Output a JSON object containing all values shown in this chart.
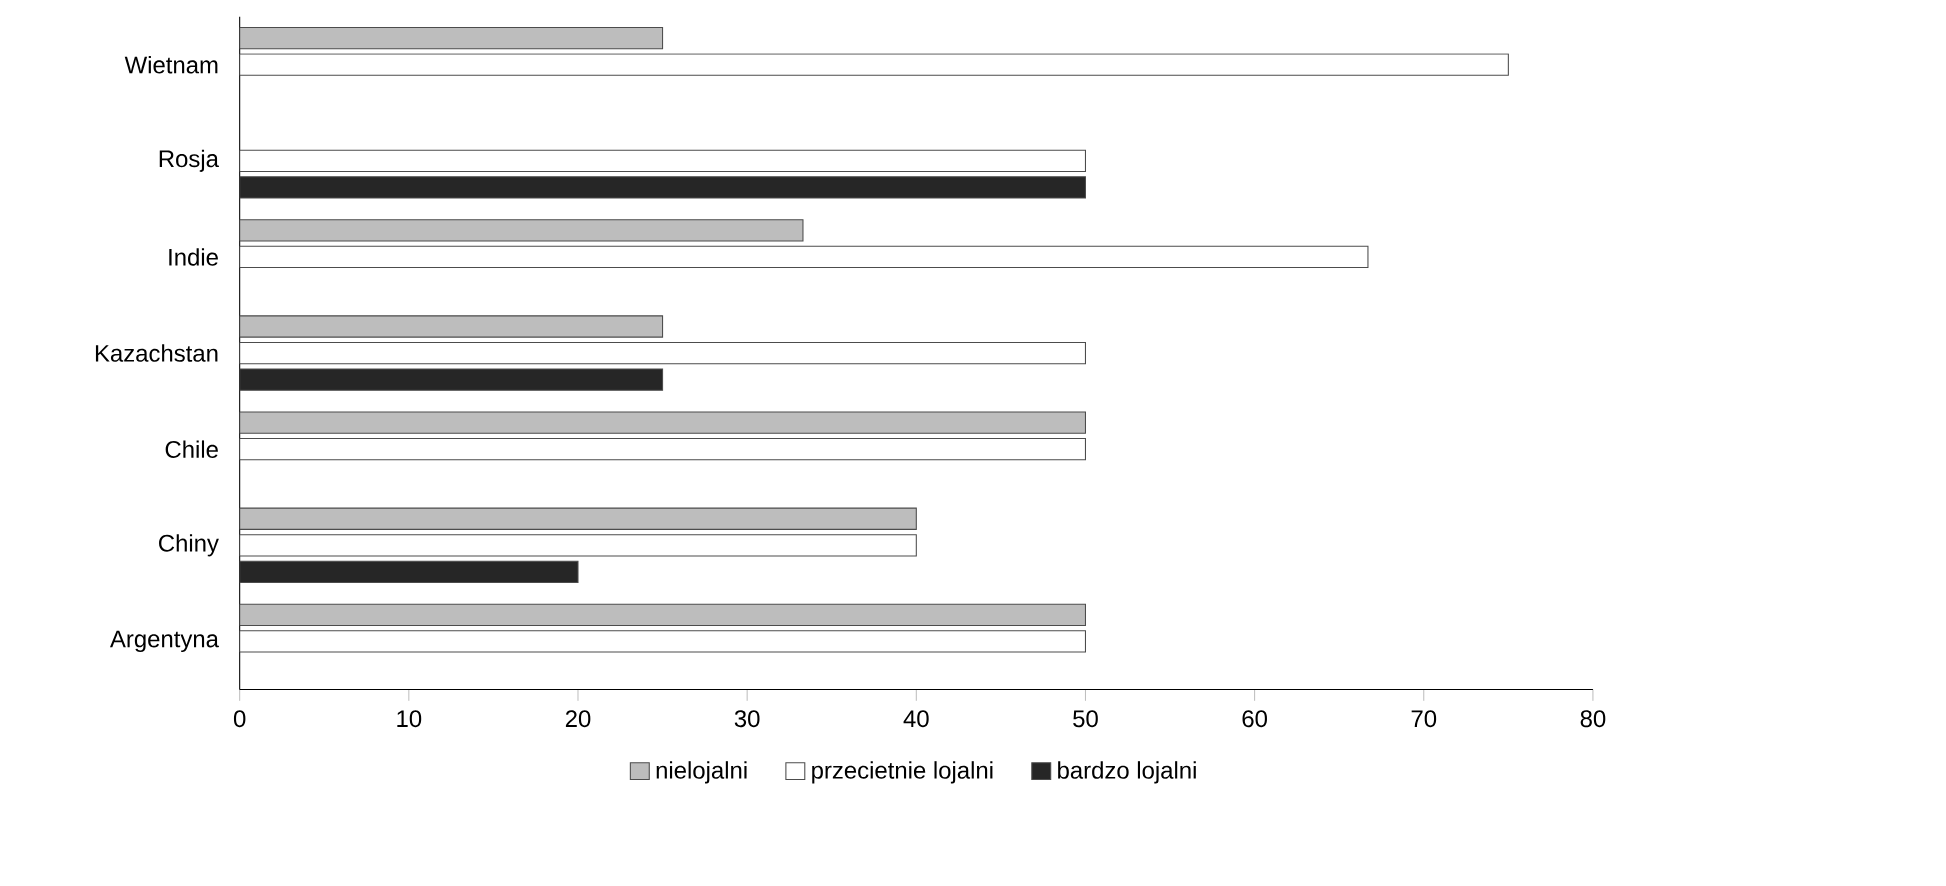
{
  "chart_data": {
    "type": "bar",
    "orientation": "horizontal",
    "categories": [
      "Wietnam",
      "Rosja",
      "Indie",
      "Kazachstan",
      "Chile",
      "Chiny",
      "Argentyna"
    ],
    "series": [
      {
        "name": "nielojalni",
        "color": "#bdbdbd",
        "values": [
          25,
          null,
          33.3,
          25,
          50,
          40,
          50
        ]
      },
      {
        "name": "przecietnie lojalni",
        "color": "#ffffff",
        "values": [
          75,
          50,
          66.7,
          50,
          50,
          40,
          50
        ]
      },
      {
        "name": "bardzo lojalni",
        "color": "#262626",
        "values": [
          null,
          50,
          null,
          25,
          null,
          20,
          null
        ]
      }
    ],
    "xlim": [
      0,
      80
    ],
    "xticks": [
      0,
      10,
      20,
      30,
      40,
      50,
      60,
      70,
      80
    ],
    "legend": "bottom"
  }
}
